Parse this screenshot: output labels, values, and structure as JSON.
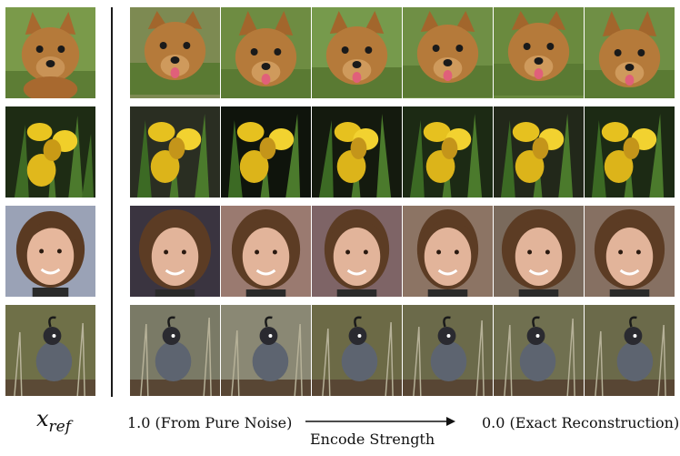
{
  "reference_label": {
    "symbol": "x",
    "subscript": "ref"
  },
  "caption": {
    "left": "1.0 (From Pure Noise)",
    "center": "Encode Strength",
    "right": "0.0 (Exact Reconstruction)"
  },
  "rows": [
    {
      "subject": "dog",
      "bg": "#6f8f45",
      "accent": "#b57a3a"
    },
    {
      "subject": "iris",
      "bg": "#1c2a14",
      "accent": "#e6c11f"
    },
    {
      "subject": "person",
      "bg": "#8a7060",
      "accent": "#e2b49a"
    },
    {
      "subject": "quail",
      "bg": "#6b6a4a",
      "accent": "#5d6470"
    }
  ]
}
